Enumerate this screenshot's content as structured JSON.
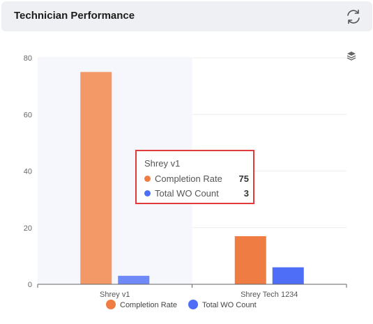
{
  "header": {
    "title": "Technician Performance"
  },
  "icons": {
    "refresh": "refresh-icon",
    "layers": "layers-icon"
  },
  "tooltip": {
    "title": "Shrey v1",
    "rows": [
      {
        "name": "Completion Rate",
        "value": "75",
        "color": "#ef7d43"
      },
      {
        "name": "Total WO Count",
        "value": "3",
        "color": "#4f6ef7"
      }
    ]
  },
  "chart_data": {
    "type": "bar",
    "categories": [
      "Shrey v1",
      "Shrey Tech 1234"
    ],
    "series": [
      {
        "name": "Completion Rate",
        "values": [
          75,
          17
        ],
        "color": "#ef7d43"
      },
      {
        "name": "Total WO Count",
        "values": [
          3,
          6
        ],
        "color": "#4f6ef7"
      }
    ],
    "yticks": [
      0,
      20,
      40,
      60,
      80
    ],
    "ylim": [
      0,
      80
    ],
    "legend": "bottom-center",
    "highlighted_category": "Shrey v1"
  }
}
